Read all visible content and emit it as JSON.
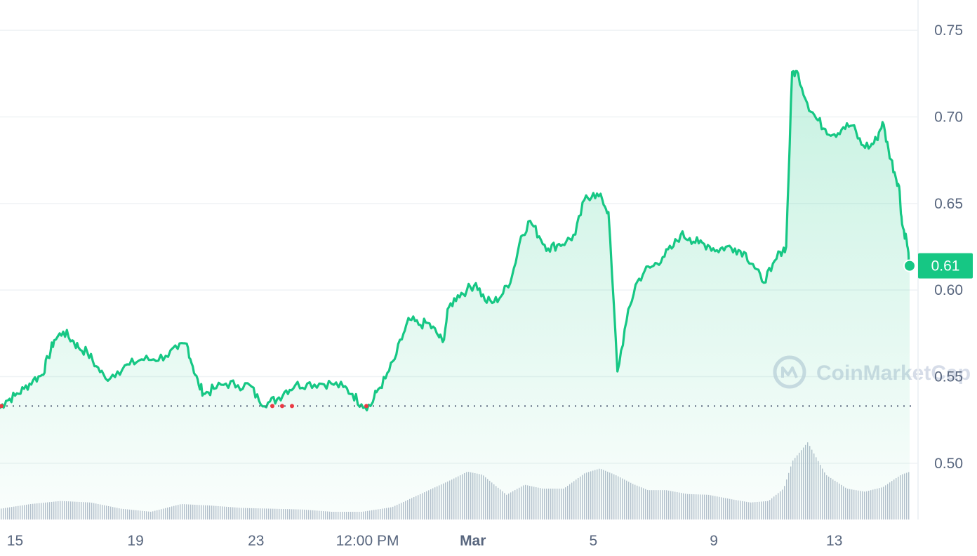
{
  "chart_data": {
    "type": "area",
    "y_ticks": [
      "0.75",
      "0.70",
      "0.65",
      "0.60",
      "0.55",
      "0.50"
    ],
    "y_tick_values": [
      0.75,
      0.7,
      0.65,
      0.6,
      0.55,
      0.5
    ],
    "x_ticks": [
      {
        "label": "15",
        "bold": false,
        "at": 0
      },
      {
        "label": "19",
        "bold": false,
        "at": 4
      },
      {
        "label": "23",
        "bold": false,
        "at": 8
      },
      {
        "label": "12:00 PM",
        "bold": false,
        "at": 11.7
      },
      {
        "label": "Mar",
        "bold": true,
        "at": 15.2
      },
      {
        "label": "5",
        "bold": false,
        "at": 19.2
      },
      {
        "label": "9",
        "bold": false,
        "at": 23.2
      },
      {
        "label": "13",
        "bold": false,
        "at": 27.2
      }
    ],
    "ylim": [
      0.4675,
      0.7675
    ],
    "xlim": [
      -0.5,
      29.7
    ],
    "baseline_value": 0.533,
    "current_value": 0.614,
    "current_label": "0.61",
    "price_series": [
      [
        -0.5,
        0.532
      ],
      [
        -0.3,
        0.536
      ],
      [
        0.0,
        0.539
      ],
      [
        0.3,
        0.543
      ],
      [
        0.6,
        0.548
      ],
      [
        0.9,
        0.551
      ],
      [
        1.1,
        0.561
      ],
      [
        1.3,
        0.571
      ],
      [
        1.6,
        0.576
      ],
      [
        1.9,
        0.571
      ],
      [
        2.1,
        0.567
      ],
      [
        2.4,
        0.564
      ],
      [
        2.7,
        0.556
      ],
      [
        3.0,
        0.549
      ],
      [
        3.4,
        0.553
      ],
      [
        3.8,
        0.557
      ],
      [
        4.2,
        0.56
      ],
      [
        4.6,
        0.56
      ],
      [
        5.0,
        0.562
      ],
      [
        5.4,
        0.566
      ],
      [
        5.7,
        0.569
      ],
      [
        5.9,
        0.556
      ],
      [
        6.1,
        0.545
      ],
      [
        6.3,
        0.54
      ],
      [
        6.6,
        0.543
      ],
      [
        7.0,
        0.546
      ],
      [
        7.4,
        0.545
      ],
      [
        7.8,
        0.545
      ],
      [
        8.1,
        0.536
      ],
      [
        8.4,
        0.535
      ],
      [
        8.7,
        0.537
      ],
      [
        9.0,
        0.542
      ],
      [
        9.3,
        0.545
      ],
      [
        9.7,
        0.546
      ],
      [
        10.1,
        0.546
      ],
      [
        10.5,
        0.546
      ],
      [
        10.9,
        0.544
      ],
      [
        11.2,
        0.54
      ],
      [
        11.5,
        0.534
      ],
      [
        11.8,
        0.533
      ],
      [
        12.0,
        0.541
      ],
      [
        12.3,
        0.549
      ],
      [
        12.6,
        0.56
      ],
      [
        12.9,
        0.575
      ],
      [
        13.1,
        0.583
      ],
      [
        13.4,
        0.58
      ],
      [
        13.7,
        0.581
      ],
      [
        14.0,
        0.575
      ],
      [
        14.2,
        0.57
      ],
      [
        14.4,
        0.59
      ],
      [
        14.7,
        0.597
      ],
      [
        15.0,
        0.6
      ],
      [
        15.3,
        0.604
      ],
      [
        15.6,
        0.594
      ],
      [
        15.9,
        0.593
      ],
      [
        16.2,
        0.598
      ],
      [
        16.5,
        0.608
      ],
      [
        16.8,
        0.631
      ],
      [
        17.1,
        0.64
      ],
      [
        17.4,
        0.631
      ],
      [
        17.7,
        0.624
      ],
      [
        18.0,
        0.626
      ],
      [
        18.3,
        0.628
      ],
      [
        18.6,
        0.632
      ],
      [
        18.9,
        0.652
      ],
      [
        19.2,
        0.656
      ],
      [
        19.5,
        0.652
      ],
      [
        19.7,
        0.645
      ],
      [
        20.0,
        0.553
      ],
      [
        20.3,
        0.582
      ],
      [
        20.6,
        0.603
      ],
      [
        20.9,
        0.611
      ],
      [
        21.2,
        0.614
      ],
      [
        21.5,
        0.619
      ],
      [
        21.8,
        0.624
      ],
      [
        22.1,
        0.632
      ],
      [
        22.4,
        0.63
      ],
      [
        22.7,
        0.627
      ],
      [
        23.0,
        0.626
      ],
      [
        23.3,
        0.623
      ],
      [
        23.6,
        0.625
      ],
      [
        23.9,
        0.624
      ],
      [
        24.2,
        0.622
      ],
      [
        24.5,
        0.615
      ],
      [
        24.8,
        0.605
      ],
      [
        25.1,
        0.611
      ],
      [
        25.4,
        0.622
      ],
      [
        25.6,
        0.625
      ],
      [
        25.8,
        0.726
      ],
      [
        26.0,
        0.725
      ],
      [
        26.3,
        0.708
      ],
      [
        26.6,
        0.699
      ],
      [
        26.9,
        0.693
      ],
      [
        27.2,
        0.69
      ],
      [
        27.5,
        0.694
      ],
      [
        27.8,
        0.695
      ],
      [
        28.1,
        0.684
      ],
      [
        28.4,
        0.683
      ],
      [
        28.6,
        0.687
      ],
      [
        28.8,
        0.697
      ],
      [
        29.0,
        0.681
      ],
      [
        29.2,
        0.668
      ],
      [
        29.35,
        0.66
      ],
      [
        29.45,
        0.638
      ],
      [
        29.6,
        0.629
      ],
      [
        29.7,
        0.614
      ]
    ],
    "volume_series": [
      [
        -0.5,
        0.14
      ],
      [
        0.5,
        0.2
      ],
      [
        1.5,
        0.24
      ],
      [
        2.5,
        0.22
      ],
      [
        3.5,
        0.14
      ],
      [
        4.5,
        0.1
      ],
      [
        5.5,
        0.2
      ],
      [
        6.5,
        0.18
      ],
      [
        7.5,
        0.15
      ],
      [
        8.5,
        0.14
      ],
      [
        9.5,
        0.13
      ],
      [
        10.5,
        0.1
      ],
      [
        11.5,
        0.1
      ],
      [
        12.5,
        0.16
      ],
      [
        13.5,
        0.34
      ],
      [
        14.5,
        0.52
      ],
      [
        15.0,
        0.62
      ],
      [
        15.5,
        0.58
      ],
      [
        16.3,
        0.32
      ],
      [
        16.9,
        0.45
      ],
      [
        17.5,
        0.4
      ],
      [
        18.2,
        0.4
      ],
      [
        18.9,
        0.6
      ],
      [
        19.4,
        0.66
      ],
      [
        19.9,
        0.58
      ],
      [
        20.5,
        0.46
      ],
      [
        21.0,
        0.38
      ],
      [
        21.6,
        0.38
      ],
      [
        22.3,
        0.33
      ],
      [
        23.0,
        0.32
      ],
      [
        23.8,
        0.26
      ],
      [
        24.4,
        0.22
      ],
      [
        25.0,
        0.24
      ],
      [
        25.5,
        0.4
      ],
      [
        25.8,
        0.76
      ],
      [
        26.3,
        1.0
      ],
      [
        26.9,
        0.58
      ],
      [
        27.6,
        0.4
      ],
      [
        28.2,
        0.36
      ],
      [
        28.8,
        0.42
      ],
      [
        29.4,
        0.58
      ],
      [
        29.7,
        0.62
      ]
    ],
    "grid": true,
    "colors": {
      "line": "#16c784",
      "fill_top": "#16c784",
      "below_baseline": "#ea3943",
      "axis_text": "#58667e",
      "grid": "#eff2f5",
      "volume": "#b6bfcd",
      "badge": "#16c784"
    }
  },
  "watermark": {
    "text": "CoinMarketCap",
    "icon": "coinmarketcap-logo-icon"
  }
}
